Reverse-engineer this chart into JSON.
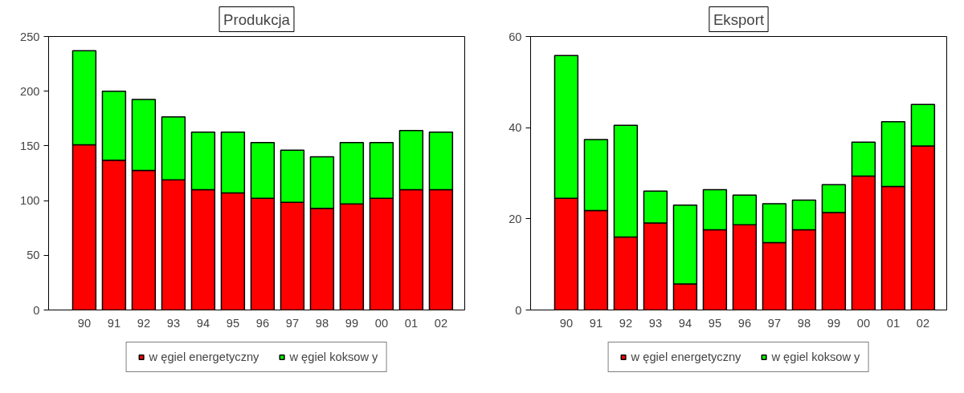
{
  "chart_data": [
    {
      "type": "bar",
      "title": "Produkcja",
      "stacked": true,
      "categories": [
        "90",
        "91",
        "92",
        "93",
        "94",
        "95",
        "96",
        "97",
        "98",
        "99",
        "00",
        "01",
        "02"
      ],
      "ylim": [
        0,
        250
      ],
      "yticks": [
        0,
        50,
        100,
        150,
        200,
        250
      ],
      "grid": false,
      "legend": "bottom",
      "series": [
        {
          "name": "w ęgiel energetyczny",
          "color": "#ff0000",
          "values": [
            151,
            137,
            127.5,
            119,
            110,
            107,
            102,
            98.5,
            93,
            97,
            102,
            110,
            110
          ]
        },
        {
          "name": "w ęgiel koksow y",
          "color": "#00ff00",
          "values": [
            86,
            63,
            65,
            57.5,
            52.5,
            55.5,
            51,
            47.5,
            47,
            56,
            51,
            54,
            52.5
          ]
        }
      ]
    },
    {
      "type": "bar",
      "title": "Eksport",
      "stacked": true,
      "categories": [
        "90",
        "91",
        "92",
        "93",
        "94",
        "95",
        "96",
        "97",
        "98",
        "99",
        "00",
        "01",
        "02"
      ],
      "ylim": [
        0,
        60
      ],
      "yticks": [
        0,
        20,
        40,
        60
      ],
      "grid": false,
      "legend": "bottom",
      "series": [
        {
          "name": "w ęgiel energetyczny",
          "color": "#ff0000",
          "values": [
            24.5,
            21.8,
            16,
            19.1,
            5.7,
            17.6,
            18.7,
            14.8,
            17.6,
            21.4,
            29.4,
            27.1,
            36
          ]
        },
        {
          "name": "w ęgiel koksow y",
          "color": "#00ff00",
          "values": [
            31.3,
            15.6,
            24.5,
            7,
            17.3,
            8.8,
            6.5,
            8.5,
            6.5,
            6.1,
            7.4,
            14.2,
            9.1
          ]
        }
      ]
    }
  ]
}
